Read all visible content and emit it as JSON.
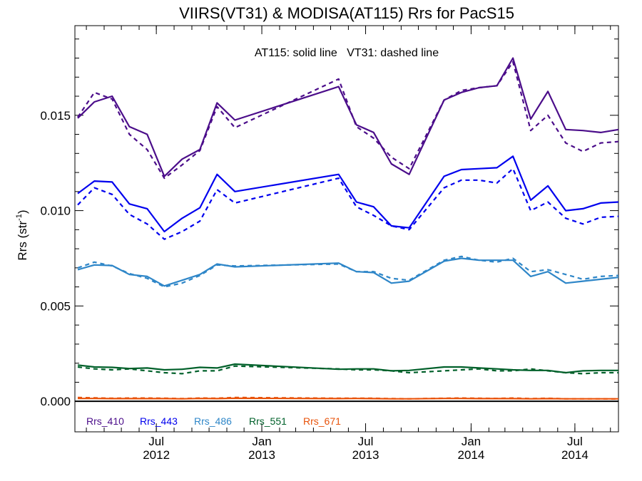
{
  "chart_data": {
    "type": "line",
    "title": "VIIRS(VT31) & MODISA(AT115)  Rrs for PacS15",
    "ylabel": "Rrs (str",
    "ylabel_sup": "-1",
    "ylabel_close": ")",
    "annotation": "AT115: solid line   VT31: dashed line",
    "ylim": [
      -0.0016,
      0.0197
    ],
    "y_ticks": [
      {
        "value": 0.0,
        "label": "0.000"
      },
      {
        "value": 0.005,
        "label": "0.005"
      },
      {
        "value": 0.01,
        "label": "0.010"
      },
      {
        "value": 0.015,
        "label": "0.015"
      }
    ],
    "xlim": [
      "2012-02-10",
      "2014-09-15"
    ],
    "x_ticks": [
      {
        "date": "2012-07-01",
        "month": "Jul",
        "year": "2012"
      },
      {
        "date": "2013-01-01",
        "month": "Jan",
        "year": "2013"
      },
      {
        "date": "2013-07-01",
        "month": "Jul",
        "year": "2013"
      },
      {
        "date": "2014-01-01",
        "month": "Jan",
        "year": "2014"
      },
      {
        "date": "2014-07-01",
        "month": "Jul",
        "year": "2014"
      }
    ],
    "x": [
      "2012-02-15",
      "2012-03-15",
      "2012-04-15",
      "2012-05-15",
      "2012-06-15",
      "2012-07-15",
      "2012-08-15",
      "2012-09-15",
      "2012-10-15",
      "2012-11-15",
      "2013-05-15",
      "2013-06-15",
      "2013-07-15",
      "2013-08-15",
      "2013-09-15",
      "2013-11-15",
      "2013-12-15",
      "2014-01-15",
      "2014-02-15",
      "2014-03-15",
      "2014-04-15",
      "2014-05-15",
      "2014-06-15",
      "2014-07-15",
      "2014-08-15",
      "2014-09-15"
    ],
    "series": [
      {
        "name": "Rrs_410",
        "color": "#4b0d8a",
        "solid": [
          0.01485,
          0.0157,
          0.016,
          0.0144,
          0.014,
          0.0118,
          0.0127,
          0.0132,
          0.01565,
          0.01475,
          0.0165,
          0.0145,
          0.0141,
          0.01245,
          0.0119,
          0.0158,
          0.0162,
          0.01645,
          0.01655,
          0.018,
          0.0148,
          0.01625,
          0.01425,
          0.0142,
          0.0141,
          0.01425
        ],
        "dashed": [
          0.0149,
          0.0162,
          0.01585,
          0.014,
          0.0132,
          0.0117,
          0.0124,
          0.01315,
          0.01545,
          0.01435,
          0.0169,
          0.0144,
          0.0138,
          0.0128,
          0.0122,
          0.0158,
          0.0163,
          0.01645,
          0.01655,
          0.0178,
          0.0142,
          0.015,
          0.01355,
          0.0131,
          0.01355,
          0.01362
        ]
      },
      {
        "name": "Rrs_443",
        "color": "#0000ee",
        "solid": [
          0.0109,
          0.01155,
          0.0115,
          0.01035,
          0.0101,
          0.0089,
          0.0096,
          0.01015,
          0.0119,
          0.011,
          0.0119,
          0.01045,
          0.0102,
          0.0092,
          0.0091,
          0.0118,
          0.01215,
          0.0122,
          0.01225,
          0.01285,
          0.01055,
          0.0113,
          0.01,
          0.0101,
          0.0104,
          0.01045
        ],
        "dashed": [
          0.0103,
          0.0112,
          0.01085,
          0.0098,
          0.0093,
          0.0085,
          0.0089,
          0.00945,
          0.0111,
          0.0104,
          0.0117,
          0.0102,
          0.00975,
          0.0092,
          0.009,
          0.0112,
          0.0116,
          0.0116,
          0.01145,
          0.0122,
          0.01,
          0.01045,
          0.0096,
          0.0093,
          0.00965,
          0.0097
        ]
      },
      {
        "name": "Rrs_486",
        "color": "#2e86c8",
        "solid": [
          0.0069,
          0.00715,
          0.00712,
          0.00665,
          0.00655,
          0.00605,
          0.00635,
          0.00665,
          0.0072,
          0.00705,
          0.00725,
          0.0068,
          0.00675,
          0.0062,
          0.0063,
          0.00735,
          0.0075,
          0.0074,
          0.0074,
          0.0074,
          0.00655,
          0.0068,
          0.0062,
          0.0063,
          0.0064,
          0.0065
        ],
        "dashed": [
          0.007,
          0.0073,
          0.0071,
          0.0067,
          0.00645,
          0.006,
          0.0062,
          0.0066,
          0.00715,
          0.0071,
          0.0072,
          0.0068,
          0.0068,
          0.00645,
          0.00635,
          0.0074,
          0.0076,
          0.0074,
          0.0073,
          0.0075,
          0.0068,
          0.0069,
          0.00665,
          0.0064,
          0.00655,
          0.0066
        ]
      },
      {
        "name": "Rrs_551",
        "color": "#00602a",
        "solid": [
          0.0019,
          0.0018,
          0.00178,
          0.00172,
          0.00175,
          0.00165,
          0.00168,
          0.00178,
          0.00175,
          0.00195,
          0.00168,
          0.0017,
          0.0017,
          0.0016,
          0.00162,
          0.0018,
          0.0018,
          0.00175,
          0.0017,
          0.00165,
          0.00162,
          0.00162,
          0.0015,
          0.0016,
          0.00162,
          0.00162
        ],
        "dashed": [
          0.0018,
          0.0017,
          0.00165,
          0.0017,
          0.0016,
          0.0015,
          0.00145,
          0.0016,
          0.0016,
          0.00185,
          0.0017,
          0.00165,
          0.00165,
          0.0016,
          0.0015,
          0.0016,
          0.00165,
          0.0017,
          0.0016,
          0.0016,
          0.0017,
          0.0016,
          0.0015,
          0.00145,
          0.0015,
          0.0015
        ]
      },
      {
        "name": "Rrs_671",
        "color": "#e8520a",
        "solid": [
          0.00015,
          0.00015,
          0.00014,
          0.00014,
          0.00014,
          0.00014,
          0.00013,
          0.00015,
          0.00014,
          0.00016,
          0.00014,
          0.00015,
          0.00014,
          0.00013,
          0.00013,
          0.00015,
          0.00015,
          0.00014,
          0.00014,
          0.00014,
          0.00013,
          0.00014,
          0.00013,
          0.00013,
          0.00013,
          0.00013
        ],
        "dashed": [
          0.0002,
          0.00018,
          0.00016,
          0.00017,
          0.00017,
          0.00016,
          0.00014,
          0.00017,
          0.00016,
          0.0002,
          0.00016,
          0.00016,
          0.00016,
          0.00014,
          0.00013,
          0.00016,
          0.00017,
          0.00016,
          0.00015,
          0.00017,
          0.00014,
          0.00016,
          0.00013,
          0.00013,
          0.00013,
          0.00012
        ]
      }
    ],
    "zero_line": {
      "value": 0.0,
      "color": "#000000"
    },
    "grid": false,
    "legend_placement": "bottom-left"
  }
}
